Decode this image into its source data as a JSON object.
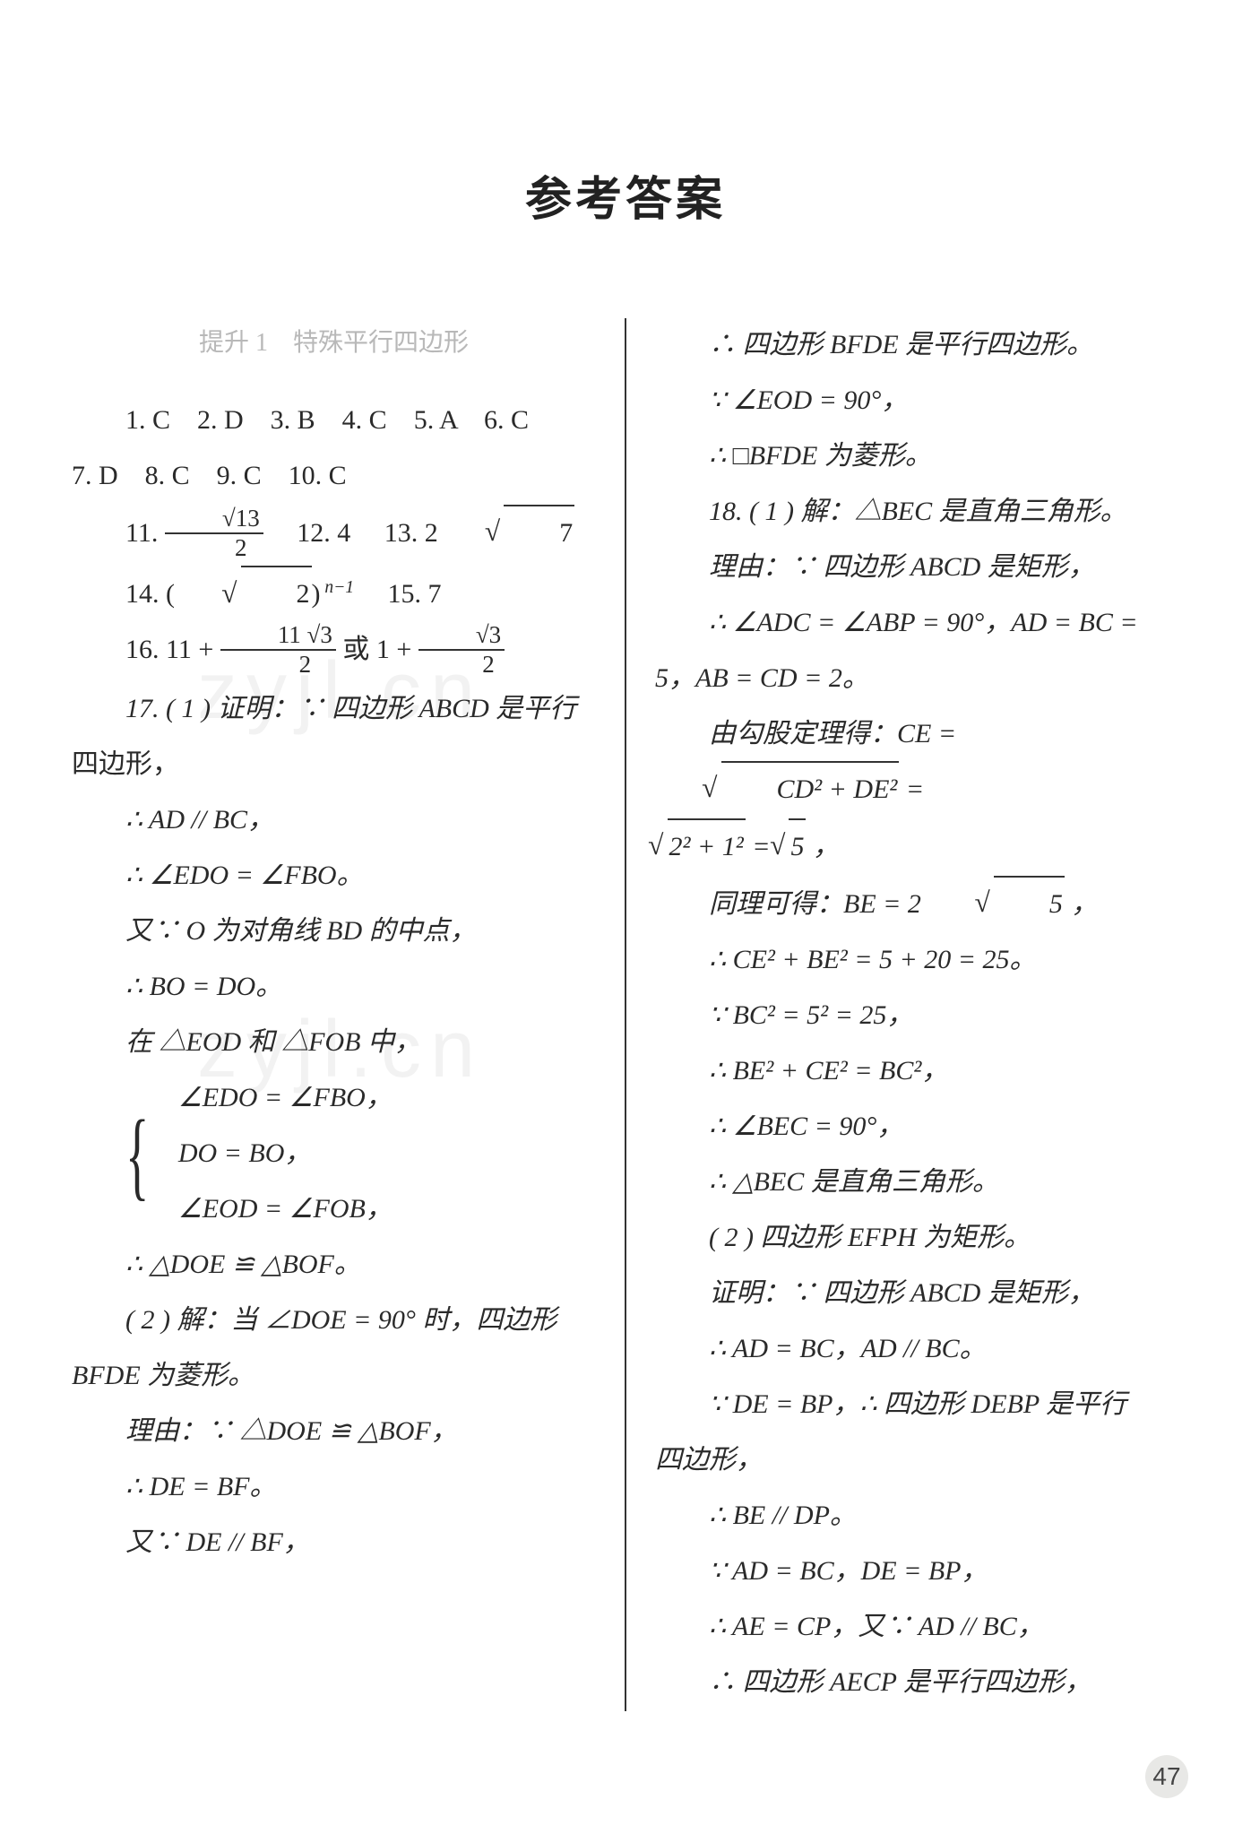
{
  "title": "参考答案",
  "section_heading": "提升 1　特殊平行四边形",
  "page_number": "47",
  "watermark_text": "zyjl.cn",
  "left_column": {
    "mc_row1": "1. C　2. D　3. B　4. C　5. A　6. C",
    "mc_row2": "7. D　8. C　9. C　10. C",
    "q11_prefix": "11. ",
    "q11_frac_num": "√13",
    "q11_frac_den": "2",
    "q12": "12. 4",
    "q13_prefix": "13. 2",
    "q13_rad": "7",
    "q14_prefix": "14. (",
    "q14_rad": "2",
    "q14_suffix_exp": " n−1",
    "q14_close": ")",
    "q15": "15. 7",
    "q16_prefix": "16. 11 + ",
    "q16_frac1_num": "11 √3",
    "q16_frac1_den": "2",
    "q16_mid": "或 1 + ",
    "q16_frac2_num": "√3",
    "q16_frac2_den": "2",
    "l17a": "17. ( 1 ) 证明：∵ 四边形 ABCD 是平行",
    "l17b": "四边形，",
    "l17c": "∴ AD // BC，",
    "l17d": "∴ ∠EDO = ∠FBO。",
    "l17e": "又∵ O 为对角线 BD 的中点，",
    "l17f": "∴ BO = DO。",
    "l17g": "在 △EOD 和 △FOB 中，",
    "brace1": "∠EDO = ∠FBO，",
    "brace2": "DO = BO，",
    "brace3": "∠EOD = ∠FOB，",
    "l17h": "∴ △DOE ≌ △BOF。",
    "l17i": "( 2 ) 解：当 ∠DOE = 90° 时，四边形",
    "l17j": "BFDE 为菱形。",
    "l17k": "理由：∵ △DOE ≌ △BOF，",
    "l17l": "∴ DE = BF。",
    "l17m": "又∵ DE // BF，"
  },
  "right_column": {
    "r1": "∴ 四边形 BFDE 是平行四边形。",
    "r2": "∵ ∠EOD = 90°，",
    "r3": "∴ □BFDE 为菱形。",
    "r4": "18. ( 1 ) 解：△BEC 是直角三角形。",
    "r5": "理由：∵ 四边形 ABCD 是矩形，",
    "r6": "∴ ∠ADC = ∠ABP = 90°，AD = BC =",
    "r7": "5，AB = CD = 2。",
    "r8a": "由勾股定理得：CE = ",
    "r8_rad1": "CD² + DE²",
    "r8b": " =",
    "r9_rad1": "2² + 1²",
    "r9_mid": " = ",
    "r9_rad2": "5",
    "r9_end": "，",
    "r10a": "同理可得：BE = 2",
    "r10_rad": "5",
    "r10b": "，",
    "r11": "∴ CE² + BE² = 5 + 20 = 25。",
    "r12": "∵ BC² = 5² = 25，",
    "r13": "∴ BE² + CE² = BC²，",
    "r14": "∴ ∠BEC = 90°，",
    "r15": "∴ △BEC 是直角三角形。",
    "r16": "( 2 ) 四边形 EFPH 为矩形。",
    "r17": "证明：∵ 四边形 ABCD 是矩形，",
    "r18": "∴ AD = BC，AD // BC。",
    "r19": "∵ DE = BP，∴ 四边形 DEBP 是平行",
    "r20": "四边形，",
    "r21": "∴ BE // DP。",
    "r22": "∵ AD = BC，DE = BP，",
    "r23": "∴ AE = CP，又∵ AD // BC，",
    "r24": "∴ 四边形 AECP 是平行四边形，"
  }
}
